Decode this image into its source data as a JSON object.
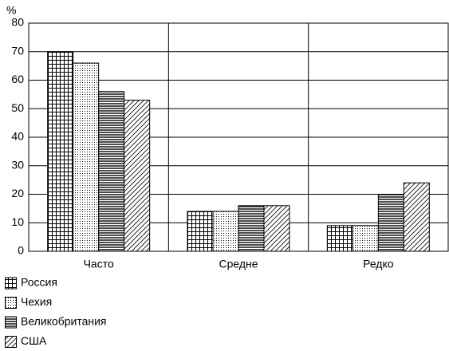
{
  "chart_data": {
    "type": "bar",
    "y_unit": "%",
    "categories": [
      "Часто",
      "Средне",
      "Редко"
    ],
    "series": [
      {
        "name": "Россия",
        "color": "#000000",
        "pattern": "grid",
        "values": [
          70,
          14,
          9
        ]
      },
      {
        "name": "Чехия",
        "color": "#000000",
        "pattern": "dots",
        "values": [
          66,
          14,
          9
        ]
      },
      {
        "name": "Великобритания",
        "color": "#000000",
        "pattern": "hlines",
        "values": [
          56,
          16,
          20
        ]
      },
      {
        "name": "США",
        "color": "#000000",
        "pattern": "diagonal",
        "values": [
          53,
          16,
          24
        ]
      }
    ],
    "ylim": [
      0,
      80
    ],
    "yticks": [
      0,
      10,
      20,
      30,
      40,
      50,
      60,
      70,
      80
    ],
    "grid": true,
    "legend": "bottom-left"
  }
}
